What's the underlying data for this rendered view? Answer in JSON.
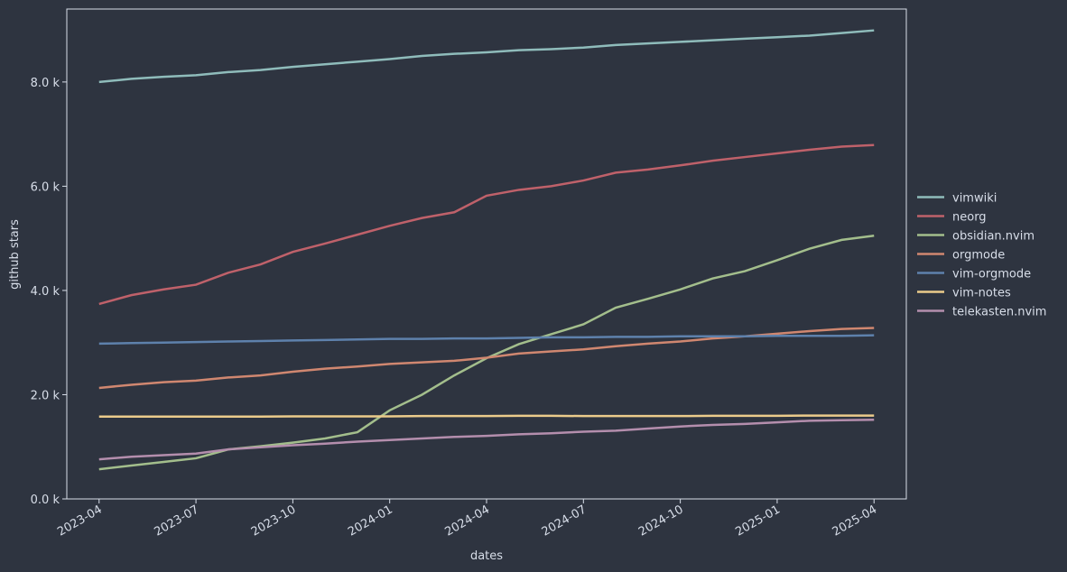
{
  "chart_data": {
    "type": "line",
    "x_label": "dates",
    "y_label": "github stars",
    "x": [
      "2023-04",
      "2023-05",
      "2023-06",
      "2023-07",
      "2023-08",
      "2023-09",
      "2023-10",
      "2023-11",
      "2023-12",
      "2024-01",
      "2024-02",
      "2024-03",
      "2024-04",
      "2024-05",
      "2024-06",
      "2024-07",
      "2024-08",
      "2024-09",
      "2024-10",
      "2024-11",
      "2024-12",
      "2025-01",
      "2025-02",
      "2025-03",
      "2025-04"
    ],
    "xlim": [
      "2023-03",
      "2025-05"
    ],
    "xticks": [
      "2023-04",
      "2023-07",
      "2023-10",
      "2024-01",
      "2024-04",
      "2024-07",
      "2024-10",
      "2025-01",
      "2025-04"
    ],
    "ylim": [
      0,
      9400
    ],
    "yticks": [
      {
        "value": 0,
        "label": "0.0 k"
      },
      {
        "value": 2000,
        "label": "2.0 k"
      },
      {
        "value": 4000,
        "label": "4.0 k"
      },
      {
        "value": 6000,
        "label": "6.0 k"
      },
      {
        "value": 8000,
        "label": "8.0 k"
      }
    ],
    "legend": "right",
    "series": [
      {
        "name": "vimwiki",
        "color": "#8fbcbb",
        "values": [
          8000,
          8060,
          8100,
          8130,
          8190,
          8230,
          8290,
          8340,
          8390,
          8440,
          8500,
          8540,
          8570,
          8610,
          8630,
          8660,
          8710,
          8740,
          8770,
          8800,
          8830,
          8860,
          8890,
          8940,
          8990
        ]
      },
      {
        "name": "neorg",
        "color": "#bf616a",
        "values": [
          3740,
          3910,
          4020,
          4110,
          4340,
          4500,
          4740,
          4900,
          5070,
          5240,
          5390,
          5500,
          5818,
          5930,
          6000,
          6110,
          6260,
          6320,
          6400,
          6490,
          6560,
          6630,
          6700,
          6760,
          6790
        ]
      },
      {
        "name": "obsidian.nvim",
        "color": "#a3be8c",
        "values": [
          570,
          640,
          710,
          780,
          950,
          1010,
          1080,
          1160,
          1280,
          1700,
          2000,
          2370,
          2700,
          2970,
          3160,
          3350,
          3670,
          3840,
          4020,
          4230,
          4370,
          4580,
          4800,
          4970,
          5050
        ]
      },
      {
        "name": "orgmode",
        "color": "#d08770",
        "values": [
          2130,
          2190,
          2240,
          2270,
          2330,
          2370,
          2440,
          2500,
          2540,
          2590,
          2620,
          2650,
          2710,
          2790,
          2830,
          2870,
          2930,
          2980,
          3020,
          3080,
          3120,
          3170,
          3220,
          3260,
          3280
        ]
      },
      {
        "name": "vim-orgmode",
        "color": "#5e81ac",
        "values": [
          2980,
          2990,
          3000,
          3010,
          3020,
          3030,
          3040,
          3050,
          3060,
          3070,
          3070,
          3080,
          3080,
          3090,
          3100,
          3100,
          3110,
          3110,
          3120,
          3120,
          3120,
          3130,
          3130,
          3130,
          3140
        ]
      },
      {
        "name": "vim-notes",
        "color": "#ebcb8b",
        "values": [
          1580,
          1580,
          1580,
          1580,
          1580,
          1580,
          1585,
          1585,
          1585,
          1585,
          1590,
          1590,
          1590,
          1595,
          1595,
          1590,
          1590,
          1590,
          1590,
          1595,
          1595,
          1595,
          1600,
          1600,
          1600
        ]
      },
      {
        "name": "telekasten.nvim",
        "color": "#b48ead",
        "values": [
          760,
          810,
          840,
          870,
          950,
          990,
          1030,
          1060,
          1100,
          1130,
          1160,
          1190,
          1210,
          1240,
          1260,
          1290,
          1310,
          1350,
          1390,
          1420,
          1440,
          1470,
          1500,
          1510,
          1520
        ]
      }
    ]
  }
}
